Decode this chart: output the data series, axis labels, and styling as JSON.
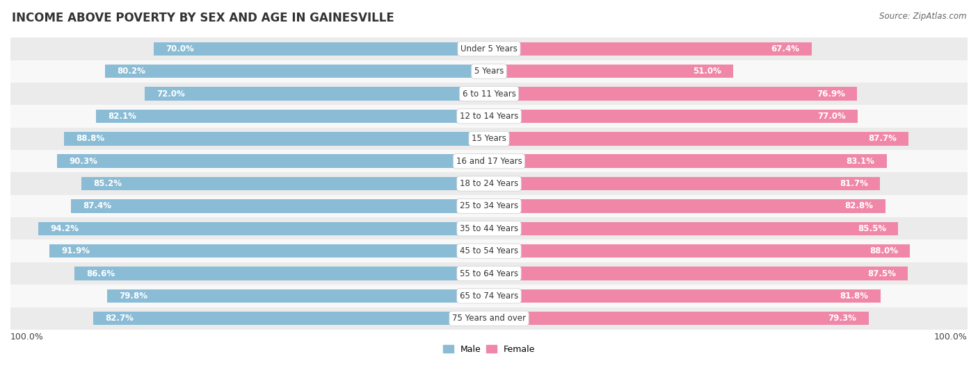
{
  "title": "INCOME ABOVE POVERTY BY SEX AND AGE IN GAINESVILLE",
  "source": "Source: ZipAtlas.com",
  "categories": [
    "Under 5 Years",
    "5 Years",
    "6 to 11 Years",
    "12 to 14 Years",
    "15 Years",
    "16 and 17 Years",
    "18 to 24 Years",
    "25 to 34 Years",
    "35 to 44 Years",
    "45 to 54 Years",
    "55 to 64 Years",
    "65 to 74 Years",
    "75 Years and over"
  ],
  "male": [
    70.0,
    80.2,
    72.0,
    82.1,
    88.8,
    90.3,
    85.2,
    87.4,
    94.2,
    91.9,
    86.6,
    79.8,
    82.7
  ],
  "female": [
    67.4,
    51.0,
    76.9,
    77.0,
    87.7,
    83.1,
    81.7,
    82.8,
    85.5,
    88.0,
    87.5,
    81.8,
    79.3
  ],
  "male_color": "#8abcd6",
  "female_color": "#f087a8",
  "bg_row_odd": "#ebebeb",
  "bg_row_even": "#f8f8f8",
  "bar_height": 0.6,
  "legend_male": "Male",
  "legend_female": "Female",
  "title_fontsize": 12,
  "source_fontsize": 8.5,
  "value_fontsize": 8.5,
  "category_fontsize": 8.5
}
